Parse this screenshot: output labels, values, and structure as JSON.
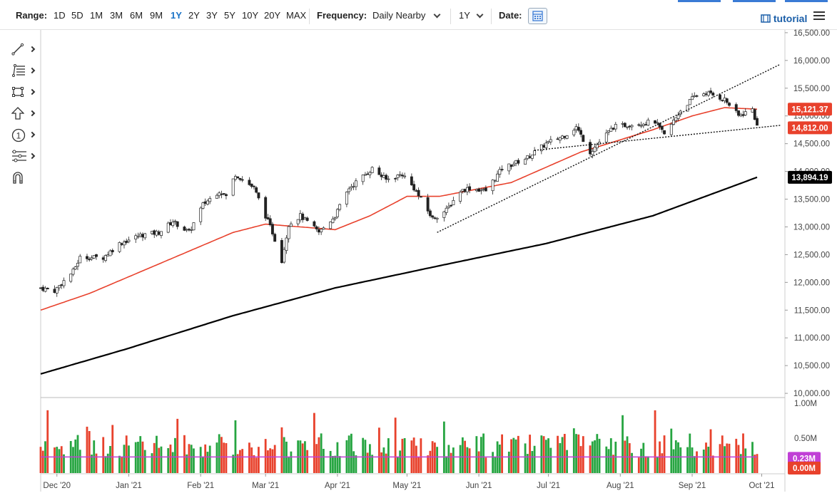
{
  "toolbar": {
    "range_label": "Range:",
    "ranges": [
      "1D",
      "5D",
      "1M",
      "3M",
      "6M",
      "9M",
      "1Y",
      "2Y",
      "3Y",
      "5Y",
      "10Y",
      "20Y",
      "MAX"
    ],
    "active_range": "1Y",
    "frequency_label": "Frequency:",
    "frequency_value": "Daily Nearby",
    "period_value": "1Y",
    "date_label": "Date:",
    "tutorial_label": "tutorial"
  },
  "drawing_tools": [
    "line-tool-icon",
    "fibonacci-tool-icon",
    "rectangle-tool-icon",
    "arrow-tool-icon",
    "annotation-tool-icon",
    "pattern-tool-icon",
    "magnet-tool-icon"
  ],
  "drawing_tool_text": {
    "annotation": "1"
  },
  "colors": {
    "up": "#26a541",
    "down": "#e8412c",
    "ma50": "#e8412c",
    "ma200": "#000000",
    "volume_ma": "#c03fd6",
    "accent": "#1a73c7"
  },
  "chart_data": {
    "type": "candlestick",
    "x_tick_labels": [
      "Dec '20",
      "Jan '21",
      "Feb '21",
      "Mar '21",
      "Apr '21",
      "May '21",
      "Jun '21",
      "Jul '21",
      "Aug '21",
      "Sep '21",
      "Oct '21"
    ],
    "price_axis": {
      "ticks": [
        "16,500.00",
        "16,000.00",
        "15,500.00",
        "15,000.00",
        "14,500.00",
        "14,000.00",
        "13,500.00",
        "13,000.00",
        "12,500.00",
        "12,000.00",
        "11,500.00",
        "11,000.00",
        "10,500.00",
        "10,000.00"
      ],
      "ylim": [
        9950,
        16550
      ]
    },
    "volume_axis": {
      "ticks": [
        "1.00M",
        "0.50M"
      ],
      "ylim": [
        0,
        1.06
      ]
    },
    "price_path_keypoints": [
      [
        "2020-11-24",
        11900
      ],
      [
        "2020-11-30",
        11850
      ],
      [
        "2020-12-08",
        12200
      ],
      [
        "2020-12-11",
        12450
      ],
      [
        "2020-12-21",
        12450
      ],
      [
        "2020-12-28",
        12700
      ],
      [
        "2021-01-06",
        12850
      ],
      [
        "2021-01-14",
        12900
      ],
      [
        "2021-01-20",
        13100
      ],
      [
        "2021-01-27",
        12900
      ],
      [
        "2021-02-02",
        13400
      ],
      [
        "2021-02-09",
        13650
      ],
      [
        "2021-02-12",
        13550
      ],
      [
        "2021-02-16",
        13950
      ],
      [
        "2021-02-24",
        13700
      ],
      [
        "2021-03-04",
        12900
      ],
      [
        "2021-03-08",
        12400
      ],
      [
        "2021-03-11",
        13050
      ],
      [
        "2021-03-16",
        13200
      ],
      [
        "2021-03-24",
        12900
      ],
      [
        "2021-03-31",
        13200
      ],
      [
        "2021-04-06",
        13700
      ],
      [
        "2021-04-16",
        14050
      ],
      [
        "2021-04-22",
        13850
      ],
      [
        "2021-04-29",
        13950
      ],
      [
        "2021-05-04",
        13700
      ],
      [
        "2021-05-12",
        13150
      ],
      [
        "2021-05-18",
        13300
      ],
      [
        "2021-05-24",
        13650
      ],
      [
        "2021-05-28",
        13700
      ],
      [
        "2021-06-04",
        13650
      ],
      [
        "2021-06-11",
        14050
      ],
      [
        "2021-06-22",
        14250
      ],
      [
        "2021-06-30",
        14500
      ],
      [
        "2021-07-08",
        14650
      ],
      [
        "2021-07-13",
        14800
      ],
      [
        "2021-07-19",
        14350
      ],
      [
        "2021-07-29",
        14800
      ],
      [
        "2021-08-06",
        14850
      ],
      [
        "2021-08-16",
        14900
      ],
      [
        "2021-08-20",
        14650
      ],
      [
        "2021-08-27",
        15100
      ],
      [
        "2021-09-02",
        15350
      ],
      [
        "2021-09-07",
        15420
      ],
      [
        "2021-09-15",
        15300
      ],
      [
        "2021-09-21",
        15000
      ],
      [
        "2021-09-27",
        15121
      ],
      [
        "2021-09-29",
        14812
      ]
    ],
    "ma50_keypoints": [
      [
        "2020-11-24",
        11500
      ],
      [
        "2020-12-15",
        11800
      ],
      [
        "2021-01-15",
        12350
      ],
      [
        "2021-02-15",
        12900
      ],
      [
        "2021-03-01",
        13050
      ],
      [
        "2021-03-31",
        12950
      ],
      [
        "2021-04-15",
        13200
      ],
      [
        "2021-05-01",
        13550
      ],
      [
        "2021-05-15",
        13550
      ],
      [
        "2021-06-15",
        13800
      ],
      [
        "2021-07-15",
        14350
      ],
      [
        "2021-08-15",
        14750
      ],
      [
        "2021-09-01",
        15000
      ],
      [
        "2021-09-15",
        15150
      ],
      [
        "2021-09-29",
        15121
      ]
    ],
    "ma200_keypoints": [
      [
        "2020-11-24",
        10350
      ],
      [
        "2020-12-31",
        10800
      ],
      [
        "2021-02-15",
        11400
      ],
      [
        "2021-03-31",
        11900
      ],
      [
        "2021-05-15",
        12300
      ],
      [
        "2021-06-30",
        12700
      ],
      [
        "2021-08-15",
        13200
      ],
      [
        "2021-09-29",
        13894
      ]
    ],
    "trendlines": [
      {
        "from": [
          "2021-05-14",
          12900
        ],
        "to": [
          "2021-10-09",
          15930
        ]
      },
      {
        "from": [
          "2021-06-25",
          14380
        ],
        "to": [
          "2021-10-09",
          14830
        ]
      }
    ],
    "last_labels": [
      {
        "text": "15,121.37",
        "value": 15121.37,
        "color": "#e8412c"
      },
      {
        "text": "14,812.00",
        "value": 14812,
        "color": "#e8412c"
      },
      {
        "text": "13,894.19",
        "value": 13894.19,
        "color": "#000000"
      }
    ],
    "volume_last_labels": [
      {
        "text": "0.23M",
        "value": 0.23,
        "color": "#c03fd6"
      },
      {
        "text": "0.00M",
        "value": 0.0,
        "color": "#e8412c"
      }
    ],
    "volume_ma_level": 0.23,
    "x_range": [
      "2020-11-24",
      "2021-10-11"
    ]
  }
}
